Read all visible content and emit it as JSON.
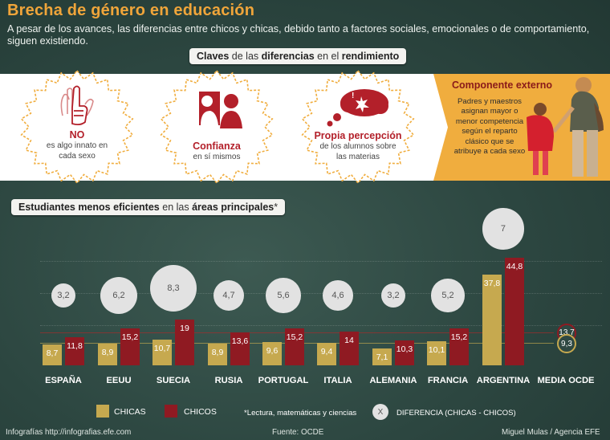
{
  "header": {
    "title": "Brecha de género en educación",
    "subtitle": "A pesar de los avances, las diferencias entre chicos y chicas, debido tanto a factores sociales, emocionales o de comportamiento, siguen existiendo."
  },
  "keys_section": {
    "label_pre": "Claves",
    "label_mid1": "de las",
    "label_bold": "diferencias",
    "label_mid2": "en el",
    "label_bold2": "rendimiento",
    "items": [
      {
        "heading": "NO",
        "line1": "es algo innato en",
        "line2": "cada sexo"
      },
      {
        "heading": "Confianza",
        "line1": "en sí mismos",
        "line2": ""
      },
      {
        "heading": "Propia percepción",
        "line1": "de los alumnos sobre",
        "line2": "las materias"
      }
    ],
    "external": {
      "title": "Componente externo",
      "text": "Padres y maestros asignan mayor o menor competencia según el reparto clásico que se atribuye a cada sexo"
    }
  },
  "chart_section": {
    "label_bold1": "Estudiantes menos eficientes",
    "label_mid": "en las",
    "label_bold2": "áreas principales",
    "label_star": "*"
  },
  "colors": {
    "chicas": "#c6a94f",
    "chicos": "#8f1a22",
    "accent": "#f0a53a"
  },
  "chart_data": {
    "type": "bar",
    "categories": [
      "ESPAÑA",
      "EEUU",
      "SUECIA",
      "RUSIA",
      "PORTUGAL",
      "ITALIA",
      "ALEMANIA",
      "FRANCIA",
      "ARGENTINA",
      "MEDIA OCDE"
    ],
    "series": [
      {
        "name": "CHICAS",
        "values": [
          8.7,
          8.9,
          10.7,
          8.9,
          9.6,
          9.4,
          7.1,
          10.1,
          37.8,
          9.3
        ]
      },
      {
        "name": "CHICOS",
        "values": [
          11.8,
          15.2,
          19,
          13.6,
          15.2,
          14,
          10.3,
          15.2,
          44.8,
          13.7
        ]
      }
    ],
    "series_labels": [
      [
        "8,7",
        "8,9",
        "10,7",
        "8,9",
        "9,6",
        "9,4",
        "7,1",
        "10,1",
        "37,8",
        "9,3"
      ],
      [
        "11,8",
        "15,2",
        "19",
        "13,6",
        "15,2",
        "14",
        "10,3",
        "15,2",
        "44,8",
        "13,7"
      ]
    ],
    "differences": [
      3.2,
      6.2,
      8.3,
      4.7,
      5.6,
      4.6,
      3.2,
      5.2,
      7
    ],
    "difference_labels": [
      "3,2",
      "6,2",
      "8,3",
      "4,7",
      "5,6",
      "4,6",
      "3,2",
      "5,2",
      "7"
    ],
    "ylim": [
      0,
      50
    ],
    "legend": {
      "chicas": "CHICAS",
      "chicos": "CHICOS",
      "note": "*Lectura, matemáticas y ciencias",
      "diff_symbol": "X",
      "diff": "DIFERENCIA (CHICAS - CHICOS)"
    }
  },
  "footer": {
    "left": "Infografías http://infografias.efe.com",
    "center": "Fuente: OCDE",
    "right": "Miguel Mulas / Agencia EFE"
  }
}
